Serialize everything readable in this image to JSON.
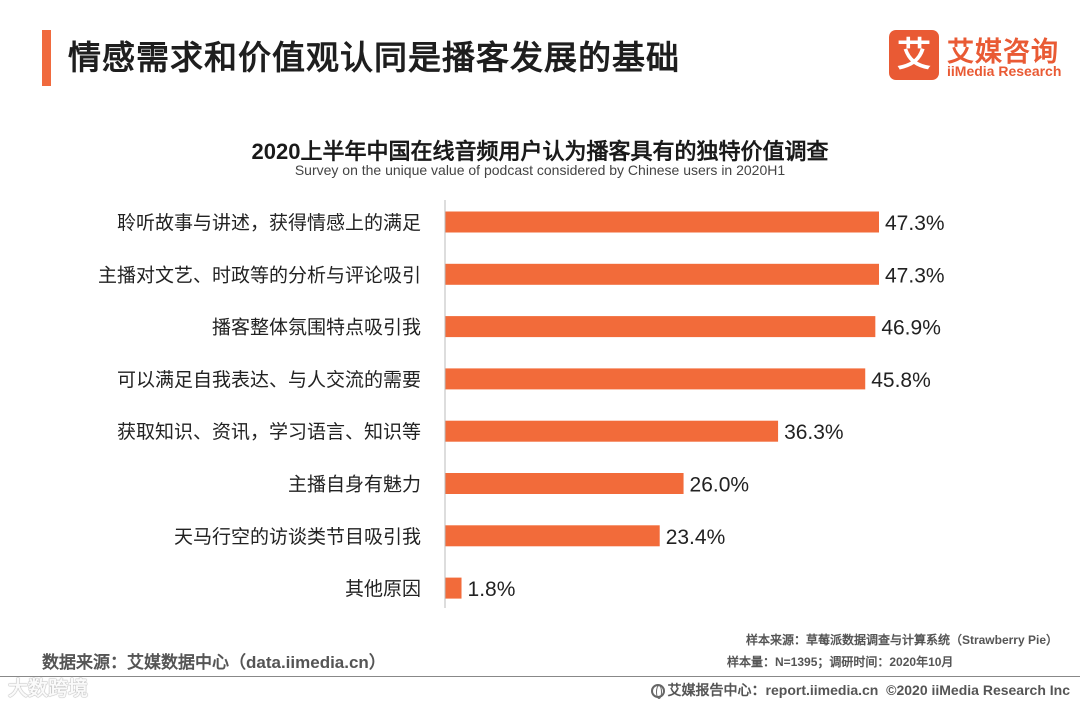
{
  "header": {
    "title": "情感需求和价值观认同是播客发展的基础",
    "brand_logo_char": "艾",
    "brand_name_cn": "艾媒咨询",
    "brand_name_en": "iiMedia Research",
    "accent_color": "#f06a3e"
  },
  "chart_data": {
    "type": "bar",
    "orientation": "horizontal",
    "title": "2020上半年中国在线音频用户认为播客具有的独特价值调查",
    "subtitle": "Survey on the unique value of podcast considered by Chinese users in 2020H1",
    "categories": [
      "聆听故事与讲述，获得情感上的满足",
      "主播对文艺、时政等的分析与评论吸引",
      "播客整体氛围特点吸引我",
      "可以满足自我表达、与人交流的需要",
      "获取知识、资讯，学习语言、知识等",
      "主播自身有魅力",
      "天马行空的访谈类节目吸引我",
      "其他原因"
    ],
    "values": [
      47.3,
      47.3,
      46.9,
      45.8,
      36.3,
      26.0,
      23.4,
      1.8
    ],
    "value_labels": [
      "47.3%",
      "47.3%",
      "46.9%",
      "45.8%",
      "36.3%",
      "26.0%",
      "23.4%",
      "1.8%"
    ],
    "unit": "%",
    "xlim": [
      0,
      50
    ],
    "bar_color": "#f26b3a",
    "grid": false,
    "legend": "none"
  },
  "footer": {
    "data_source": "数据来源：艾媒数据中心（data.iimedia.cn）",
    "sample_source": "样本来源：草莓派数据调查与计算系统（Strawberry Pie）",
    "sample_size": "样本量：N=1395；调研时间：2020年10月",
    "report_site": "艾媒报告中心：report.iimedia.cn",
    "copyright": "©2020  iiMedia Research  Inc",
    "watermark": "大数跨境"
  }
}
